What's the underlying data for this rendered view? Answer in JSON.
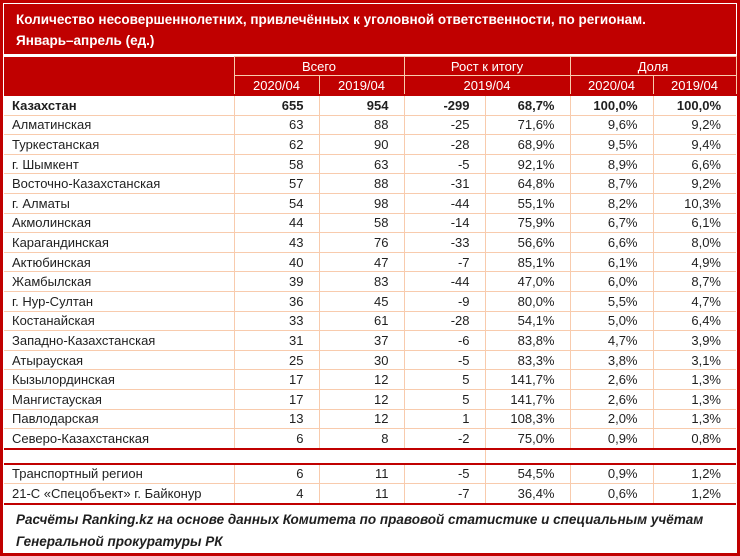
{
  "colors": {
    "header_red": "#C00000",
    "grid_peach": "#F8CBAD",
    "text_dark": "#1F1F1F"
  },
  "chart_data": {
    "type": "table",
    "title_lines": [
      "Количество несовершеннолетних, привлечённых к уголовной ответственности, по регионам.",
      "Январь–апрель (ед.)"
    ],
    "group_headers": {
      "total": "Всего",
      "growth": "Рост к итогу",
      "share": "Доля"
    },
    "sub_headers": {
      "total_2020": "2020/04",
      "total_2019": "2019/04",
      "growth_2019": "2019/04",
      "share_2020": "2020/04",
      "share_2019": "2019/04"
    },
    "rows": [
      {
        "region": "Казахстан",
        "total_2020": 655,
        "total_2019": 954,
        "growth_abs": -299,
        "growth_pct": "68,7%",
        "share_2020": "100,0%",
        "share_2019": "100,0%",
        "emphasis": true
      },
      {
        "region": "Алматинская",
        "total_2020": 63,
        "total_2019": 88,
        "growth_abs": -25,
        "growth_pct": "71,6%",
        "share_2020": "9,6%",
        "share_2019": "9,2%"
      },
      {
        "region": "Туркестанская",
        "total_2020": 62,
        "total_2019": 90,
        "growth_abs": -28,
        "growth_pct": "68,9%",
        "share_2020": "9,5%",
        "share_2019": "9,4%"
      },
      {
        "region": "г. Шымкент",
        "total_2020": 58,
        "total_2019": 63,
        "growth_abs": -5,
        "growth_pct": "92,1%",
        "share_2020": "8,9%",
        "share_2019": "6,6%"
      },
      {
        "region": "Восточно-Казахстанская",
        "total_2020": 57,
        "total_2019": 88,
        "growth_abs": -31,
        "growth_pct": "64,8%",
        "share_2020": "8,7%",
        "share_2019": "9,2%"
      },
      {
        "region": "г. Алматы",
        "total_2020": 54,
        "total_2019": 98,
        "growth_abs": -44,
        "growth_pct": "55,1%",
        "share_2020": "8,2%",
        "share_2019": "10,3%"
      },
      {
        "region": "Акмолинская",
        "total_2020": 44,
        "total_2019": 58,
        "growth_abs": -14,
        "growth_pct": "75,9%",
        "share_2020": "6,7%",
        "share_2019": "6,1%"
      },
      {
        "region": "Карагандинская",
        "total_2020": 43,
        "total_2019": 76,
        "growth_abs": -33,
        "growth_pct": "56,6%",
        "share_2020": "6,6%",
        "share_2019": "8,0%"
      },
      {
        "region": "Актюбинская",
        "total_2020": 40,
        "total_2019": 47,
        "growth_abs": -7,
        "growth_pct": "85,1%",
        "share_2020": "6,1%",
        "share_2019": "4,9%"
      },
      {
        "region": "Жамбылская",
        "total_2020": 39,
        "total_2019": 83,
        "growth_abs": -44,
        "growth_pct": "47,0%",
        "share_2020": "6,0%",
        "share_2019": "8,7%"
      },
      {
        "region": "г. Нур-Султан",
        "total_2020": 36,
        "total_2019": 45,
        "growth_abs": -9,
        "growth_pct": "80,0%",
        "share_2020": "5,5%",
        "share_2019": "4,7%"
      },
      {
        "region": "Костанайская",
        "total_2020": 33,
        "total_2019": 61,
        "growth_abs": -28,
        "growth_pct": "54,1%",
        "share_2020": "5,0%",
        "share_2019": "6,4%"
      },
      {
        "region": "Западно-Казахстанская",
        "total_2020": 31,
        "total_2019": 37,
        "growth_abs": -6,
        "growth_pct": "83,8%",
        "share_2020": "4,7%",
        "share_2019": "3,9%"
      },
      {
        "region": "Атырауская",
        "total_2020": 25,
        "total_2019": 30,
        "growth_abs": -5,
        "growth_pct": "83,3%",
        "share_2020": "3,8%",
        "share_2019": "3,1%"
      },
      {
        "region": "Кызылординская",
        "total_2020": 17,
        "total_2019": 12,
        "growth_abs": 5,
        "growth_pct": "141,7%",
        "share_2020": "2,6%",
        "share_2019": "1,3%"
      },
      {
        "region": "Мангистауская",
        "total_2020": 17,
        "total_2019": 12,
        "growth_abs": 5,
        "growth_pct": "141,7%",
        "share_2020": "2,6%",
        "share_2019": "1,3%"
      },
      {
        "region": "Павлодарская",
        "total_2020": 13,
        "total_2019": 12,
        "growth_abs": 1,
        "growth_pct": "108,3%",
        "share_2020": "2,0%",
        "share_2019": "1,3%"
      },
      {
        "region": "Северо-Казахстанская",
        "total_2020": 6,
        "total_2019": 8,
        "growth_abs": -2,
        "growth_pct": "75,0%",
        "share_2020": "0,9%",
        "share_2019": "0,8%"
      }
    ],
    "extra_rows": [
      {
        "region": "Транспортный регион",
        "total_2020": 6,
        "total_2019": 11,
        "growth_abs": -5,
        "growth_pct": "54,5%",
        "share_2020": "0,9%",
        "share_2019": "1,2%"
      },
      {
        "region": "21-С «Спецобъект» г. Байконур",
        "total_2020": 4,
        "total_2019": 11,
        "growth_abs": -7,
        "growth_pct": "36,4%",
        "share_2020": "0,6%",
        "share_2019": "1,2%"
      }
    ],
    "source_lines": [
      "Расчёты Ranking.kz на основе данных Комитета по правовой статистике и специальным учётам",
      "Генеральной прокуратуры РК"
    ]
  }
}
